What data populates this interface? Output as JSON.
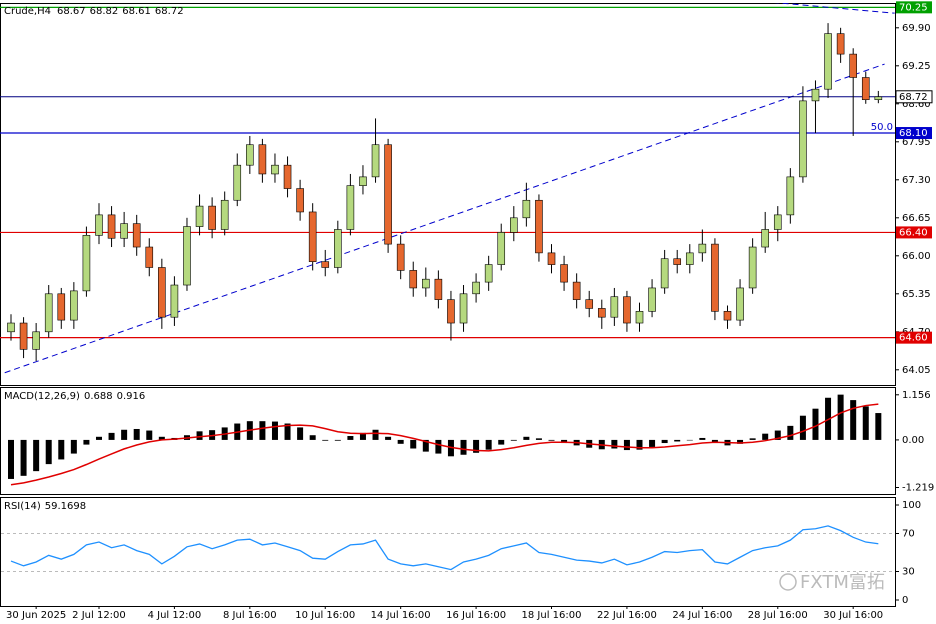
{
  "chart_data": [
    {
      "type": "candlestick",
      "title": "Crude,H4",
      "categories": [
        null,
        null,
        "30 Jun 2025",
        null,
        null,
        null,
        null,
        "2 Jul 12:00",
        null,
        null,
        null,
        null,
        null,
        "4 Jul 12:00",
        null,
        null,
        null,
        null,
        null,
        "8 Jul 16:00",
        null,
        null,
        null,
        null,
        null,
        "10 Jul 16:00",
        null,
        null,
        null,
        null,
        null,
        "14 Jul 16:00",
        null,
        null,
        null,
        null,
        null,
        "16 Jul 16:00",
        null,
        null,
        null,
        null,
        null,
        "18 Jul 16:00",
        null,
        null,
        null,
        null,
        null,
        "22 Jul 16:00",
        null,
        null,
        null,
        null,
        null,
        "24 Jul 16:00",
        null,
        null,
        null,
        null,
        null,
        "28 Jul 16:00",
        null,
        null,
        null,
        null,
        null,
        "30 Jul 16:00",
        null,
        null
      ],
      "open": [
        64.7,
        64.85,
        64.4,
        64.7,
        65.35,
        64.9,
        65.4,
        66.35,
        66.7,
        66.3,
        66.55,
        66.15,
        65.8,
        64.95,
        65.5,
        66.5,
        66.85,
        66.45,
        66.95,
        67.55,
        67.9,
        67.4,
        67.55,
        67.15,
        66.75,
        65.9,
        65.8,
        66.45,
        67.2,
        67.35,
        67.9,
        66.2,
        65.75,
        65.45,
        65.6,
        65.25,
        64.85,
        65.35,
        65.55,
        65.85,
        66.4,
        66.65,
        66.95,
        66.05,
        65.85,
        65.55,
        65.25,
        65.1,
        64.95,
        65.3,
        64.85,
        65.05,
        65.45,
        65.95,
        65.85,
        66.05,
        66.2,
        65.05,
        64.9,
        65.45,
        66.15,
        66.45,
        66.7,
        67.35,
        68.65,
        68.85,
        69.8,
        69.45,
        69.05,
        68.67
      ],
      "high": [
        65.0,
        64.95,
        64.85,
        65.5,
        65.45,
        65.55,
        66.5,
        66.9,
        66.85,
        66.75,
        66.7,
        66.3,
        65.95,
        65.65,
        66.65,
        67.05,
        67.0,
        67.1,
        67.75,
        68.05,
        68.0,
        67.75,
        67.7,
        67.3,
        66.9,
        66.1,
        66.6,
        67.4,
        67.55,
        68.35,
        68.0,
        66.35,
        65.9,
        65.8,
        65.75,
        65.4,
        65.5,
        65.7,
        66.0,
        66.55,
        66.85,
        67.25,
        67.05,
        66.2,
        66.0,
        65.7,
        65.4,
        65.25,
        65.45,
        65.4,
        65.2,
        65.6,
        66.1,
        66.1,
        66.2,
        66.45,
        66.3,
        65.15,
        65.6,
        66.3,
        66.75,
        66.85,
        67.5,
        68.9,
        69.0,
        69.98,
        69.9,
        69.55,
        69.15,
        68.82
      ],
      "low": [
        64.55,
        64.25,
        64.2,
        64.6,
        64.75,
        64.75,
        65.3,
        66.2,
        66.15,
        66.15,
        66.0,
        65.65,
        64.75,
        64.8,
        65.4,
        66.35,
        66.3,
        66.35,
        66.85,
        67.4,
        67.25,
        67.25,
        67.0,
        66.6,
        65.75,
        65.65,
        65.7,
        66.35,
        67.05,
        67.25,
        66.05,
        65.6,
        65.3,
        65.3,
        65.1,
        64.55,
        64.7,
        65.2,
        65.4,
        65.75,
        66.25,
        66.5,
        65.9,
        65.7,
        65.4,
        65.1,
        64.95,
        64.75,
        64.8,
        64.7,
        64.7,
        64.95,
        65.35,
        65.7,
        65.7,
        65.9,
        64.9,
        64.75,
        64.8,
        65.35,
        66.05,
        66.25,
        66.55,
        67.25,
        68.1,
        68.7,
        69.3,
        68.05,
        68.6,
        68.61
      ],
      "close": [
        64.85,
        64.4,
        64.7,
        65.35,
        64.9,
        65.4,
        66.35,
        66.7,
        66.3,
        66.55,
        66.15,
        65.8,
        64.95,
        65.5,
        66.5,
        66.85,
        66.45,
        66.95,
        67.55,
        67.9,
        67.4,
        67.55,
        67.15,
        66.75,
        65.9,
        65.8,
        66.45,
        67.2,
        67.35,
        67.9,
        66.2,
        65.75,
        65.45,
        65.6,
        65.25,
        64.85,
        65.35,
        65.55,
        65.85,
        66.4,
        66.65,
        66.95,
        66.05,
        65.85,
        65.55,
        65.25,
        65.1,
        64.95,
        65.3,
        64.85,
        65.05,
        65.45,
        65.95,
        65.85,
        66.05,
        66.2,
        65.05,
        64.9,
        65.45,
        66.15,
        66.45,
        66.7,
        67.35,
        68.65,
        68.85,
        69.8,
        69.45,
        69.05,
        68.67,
        68.72
      ],
      "up_color": "#b5d97f",
      "down_color": "#e5672e",
      "last_price_color": "#000080",
      "ylim": [
        63.79,
        70.29
      ],
      "yticks": [
        {
          "value": 69.9,
          "label": "69.90"
        },
        69.25,
        {
          "value": 68.6,
          "label": "68.60"
        },
        67.95,
        {
          "value": 67.3,
          "label": "67.30"
        },
        66.65,
        {
          "value": 66,
          "label": "66.00"
        },
        65.35,
        {
          "value": 64.7,
          "label": "64.70"
        },
        64.05
      ],
      "levels": [
        {
          "value": 70.25,
          "color": "#00a000"
        },
        {
          "value": 68.1,
          "label": "68.10",
          "color": "#0000cc",
          "note": "50.0"
        },
        {
          "value": 66.4,
          "label": "66.40",
          "color": "#e00000"
        },
        {
          "value": 64.6,
          "label": "64.60",
          "color": "#e00000"
        }
      ],
      "trendlines": [
        {
          "x": [
            -0.5,
            69.5
          ],
          "y": [
            64.0,
            69.28
          ],
          "color": "#0000cc"
        },
        {
          "x": [
            59.8,
            70.3
          ],
          "y": [
            70.35,
            70.15
          ],
          "color": "#0000cc"
        }
      ],
      "watermark": "FXTM富拓"
    },
    {
      "type": "macd",
      "title": "MACD(12,26,9)",
      "histogram": [
        -1.0,
        -0.92,
        -0.8,
        -0.62,
        -0.5,
        -0.35,
        -0.12,
        0.08,
        0.18,
        0.26,
        0.28,
        0.24,
        0.08,
        0.05,
        0.12,
        0.22,
        0.25,
        0.32,
        0.42,
        0.48,
        0.48,
        0.47,
        0.42,
        0.32,
        0.12,
        -0.02,
        -0.02,
        0.1,
        0.18,
        0.26,
        0.08,
        -0.1,
        -0.22,
        -0.3,
        -0.35,
        -0.42,
        -0.38,
        -0.33,
        -0.25,
        -0.12,
        -0.02,
        0.08,
        0.04,
        -0.02,
        -0.08,
        -0.14,
        -0.2,
        -0.24,
        -0.22,
        -0.26,
        -0.25,
        -0.18,
        -0.08,
        -0.04,
        0.0,
        0.05,
        -0.06,
        -0.14,
        -0.1,
        0.04,
        0.16,
        0.24,
        0.36,
        0.62,
        0.8,
        1.08,
        1.16,
        1.02,
        0.86,
        0.688
      ],
      "signal": [
        -1.15,
        -1.1,
        -1.03,
        -0.95,
        -0.86,
        -0.76,
        -0.63,
        -0.49,
        -0.36,
        -0.23,
        -0.13,
        -0.05,
        0.0,
        0.02,
        0.05,
        0.08,
        0.11,
        0.15,
        0.2,
        0.25,
        0.3,
        0.34,
        0.37,
        0.38,
        0.36,
        0.29,
        0.21,
        0.17,
        0.16,
        0.17,
        0.16,
        0.11,
        0.04,
        -0.04,
        -0.12,
        -0.19,
        -0.24,
        -0.27,
        -0.28,
        -0.25,
        -0.2,
        -0.14,
        -0.09,
        -0.06,
        -0.06,
        -0.07,
        -0.1,
        -0.13,
        -0.16,
        -0.18,
        -0.2,
        -0.2,
        -0.18,
        -0.15,
        -0.12,
        -0.08,
        -0.06,
        -0.07,
        -0.08,
        -0.06,
        -0.02,
        0.04,
        0.11,
        0.22,
        0.35,
        0.52,
        0.69,
        0.81,
        0.88,
        0.916
      ],
      "histogram_color": "#000000",
      "signal_color": "#e00000",
      "ylim": [
        -1.36,
        1.33
      ],
      "yticks": [
        1.156,
        {
          "value": 0,
          "label": "0.00"
        },
        -1.219
      ]
    },
    {
      "type": "line",
      "title": "RSI(14)",
      "values": [
        41,
        36,
        40,
        47,
        43,
        48,
        58,
        61,
        55,
        58,
        52,
        48,
        38,
        46,
        56,
        59,
        54,
        58,
        63,
        64,
        58,
        60,
        56,
        52,
        44,
        43,
        51,
        58,
        59,
        63,
        43,
        38,
        36,
        38,
        35,
        32,
        40,
        43,
        47,
        54,
        57,
        60,
        50,
        48,
        45,
        42,
        41,
        39,
        43,
        37,
        40,
        45,
        51,
        50,
        52,
        53,
        40,
        38,
        45,
        52,
        55,
        57,
        63,
        74,
        75,
        78,
        73,
        66,
        61,
        59.1698
      ],
      "color": "#1e90ff",
      "grid": true,
      "ylim": [
        0,
        100
      ],
      "yticks": [
        100,
        70,
        30,
        0
      ]
    }
  ]
}
